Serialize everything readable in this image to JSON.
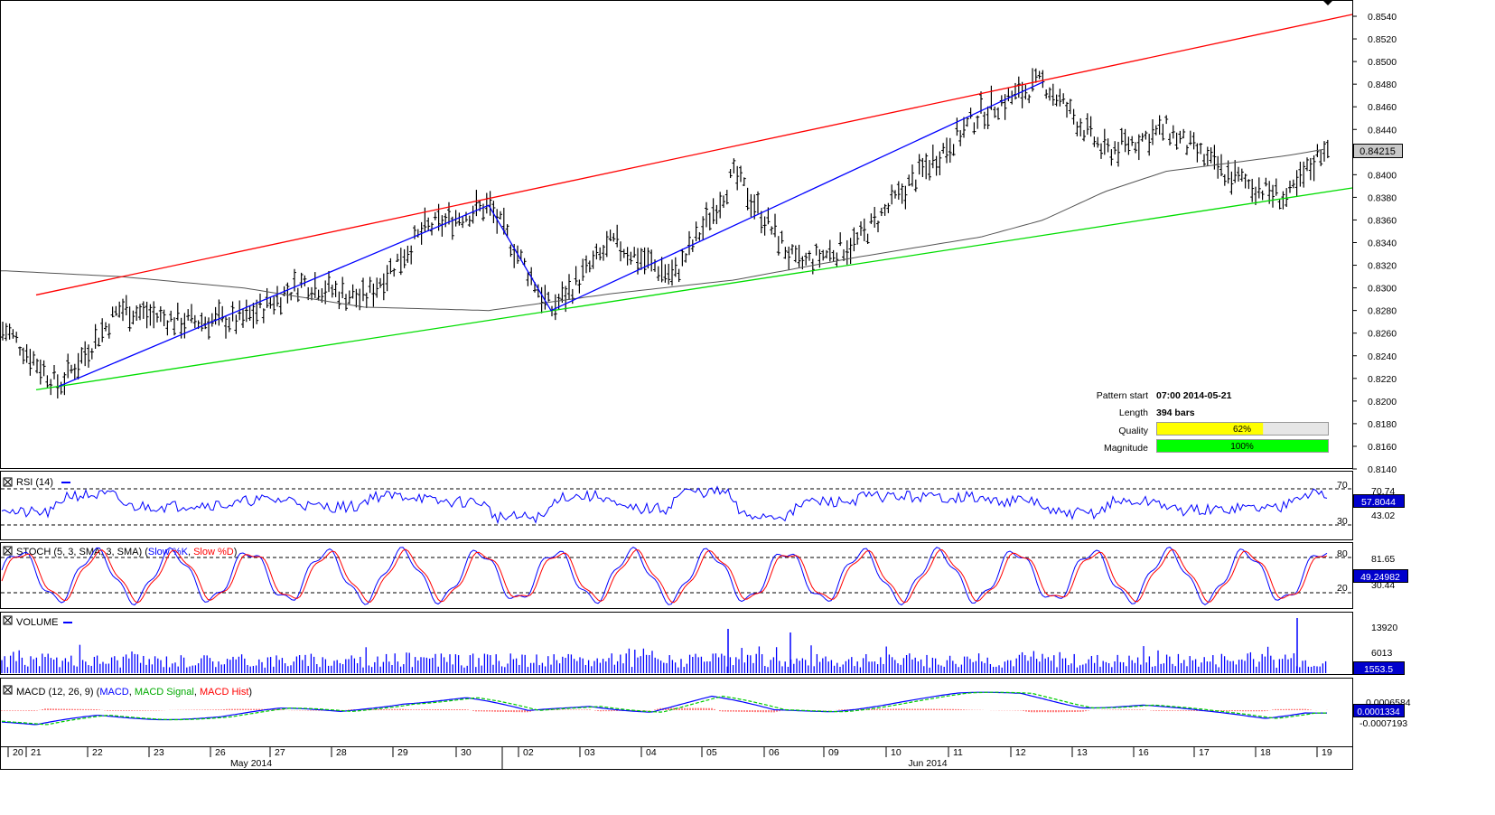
{
  "main_pane": {
    "price_ticks": [
      "0.8540",
      "0.8520",
      "0.8500",
      "0.8480",
      "0.8460",
      "0.8440",
      "0.8420",
      "0.8400",
      "0.8380",
      "0.8360",
      "0.8340",
      "0.8320",
      "0.8300",
      "0.8280",
      "0.8260",
      "0.8240",
      "0.8220",
      "0.8200",
      "0.8180",
      "0.8160",
      "0.8140"
    ],
    "last_price_label": "0.84215",
    "pattern_info": {
      "pattern_start_label": "Pattern start",
      "pattern_start_value": "07:00 2014-05-21",
      "length_label": "Length",
      "length_value": "394 bars",
      "quality_label": "Quality",
      "quality_value": "62%",
      "quality_fraction": 0.62,
      "magnitude_label": "Magnitude",
      "magnitude_value": "100%",
      "magnitude_fraction": 1.0
    }
  },
  "rsi_pane": {
    "title": "RSI (14)",
    "levels": [
      "70",
      "30"
    ],
    "tick_labels": [
      "70.74",
      "43.02"
    ],
    "current_value": "57.8044"
  },
  "stoch_pane": {
    "title_prefix": "STOCH (5, 3, SMA, 3, SMA)",
    "series_k": "Slow %K",
    "series_d": "Slow %D",
    "levels": [
      "80",
      "20"
    ],
    "tick_labels": [
      "81.65",
      "30.44"
    ],
    "current_value": "49.24982"
  },
  "volume_pane": {
    "title": "VOLUME",
    "tick_labels": [
      "13920",
      "6013"
    ],
    "current_value": "1553.5"
  },
  "macd_pane": {
    "title_prefix": "MACD (12, 26, 9)",
    "series_macd": "MACD",
    "series_signal": "MACD Signal",
    "series_hist": "MACD Hist",
    "tick_labels": [
      "0.0006584",
      "-0.0007193"
    ],
    "current_value": "0.0001334"
  },
  "time_axis": {
    "day_labels": [
      "20",
      "21",
      "22",
      "23",
      "26",
      "27",
      "28",
      "29",
      "30",
      "02",
      "03",
      "04",
      "05",
      "06",
      "09",
      "10",
      "11",
      "12",
      "13",
      "16",
      "17",
      "18",
      "19"
    ],
    "month_labels": [
      "May 2014",
      "Jun 2014"
    ]
  },
  "colors": {
    "resistance_line": "#ff0000",
    "support_line": "#00dd00",
    "zigzag": "#0000ff",
    "moving_average": "#555555",
    "rsi": "#0000ff",
    "stoch_k": "#0000ff",
    "stoch_d": "#ff0000",
    "volume": "#0000ff",
    "macd": "#0000ff",
    "macd_signal": "#00cc00",
    "macd_hist": "#ff0000",
    "quality_bar": "#ffff00",
    "magnitude_bar": "#00ff00"
  },
  "chart_data": {
    "type": "ohlc",
    "instrument_price_range": [
      0.814,
      0.854
    ],
    "price_pivots": [
      {
        "day": "20",
        "price": 0.8262
      },
      {
        "day": "21",
        "price": 0.8213
      },
      {
        "day": "22",
        "price": 0.8282
      },
      {
        "day": "23",
        "price": 0.827
      },
      {
        "day": "26",
        "price": 0.8272
      },
      {
        "day": "27",
        "price": 0.8305
      },
      {
        "day": "28",
        "price": 0.829
      },
      {
        "day": "29",
        "price": 0.8352
      },
      {
        "day": "30",
        "price": 0.8373
      },
      {
        "day": "02",
        "price": 0.828
      },
      {
        "day": "03",
        "price": 0.834
      },
      {
        "day": "04",
        "price": 0.831
      },
      {
        "day": "05",
        "price": 0.84
      },
      {
        "day": "06",
        "price": 0.832
      },
      {
        "day": "09",
        "price": 0.834
      },
      {
        "day": "10",
        "price": 0.84
      },
      {
        "day": "11",
        "price": 0.8455
      },
      {
        "day": "12",
        "price": 0.8482
      },
      {
        "day": "13",
        "price": 0.842
      },
      {
        "day": "16",
        "price": 0.844
      },
      {
        "day": "17",
        "price": 0.84
      },
      {
        "day": "18",
        "price": 0.8378
      },
      {
        "day": "19",
        "price": 0.843
      }
    ],
    "last_close": 0.84215,
    "pattern": {
      "type": "ascending channel",
      "start": "07:00 2014-05-21",
      "length_bars": 394,
      "quality_pct": 62,
      "magnitude_pct": 100,
      "resistance_line": {
        "from": {
          "day": "21",
          "price": 0.8298
        },
        "to": {
          "day": "19",
          "price": 0.8537
        }
      },
      "support_line": {
        "from": {
          "day": "21",
          "price": 0.8213
        },
        "to": {
          "day": "19",
          "price": 0.8385
        }
      },
      "zigzag": [
        {
          "day": "21",
          "price": 0.8213
        },
        {
          "day": "30",
          "price": 0.8373
        },
        {
          "day": "02",
          "price": 0.828
        },
        {
          "day": "12",
          "price": 0.8482
        }
      ]
    },
    "moving_average_points": [
      {
        "day": "20",
        "price": 0.8315
      },
      {
        "day": "22",
        "price": 0.831
      },
      {
        "day": "26",
        "price": 0.83
      },
      {
        "day": "28",
        "price": 0.8283
      },
      {
        "day": "30",
        "price": 0.828
      },
      {
        "day": "03",
        "price": 0.8295
      },
      {
        "day": "05",
        "price": 0.8307
      },
      {
        "day": "09",
        "price": 0.8327
      },
      {
        "day": "11",
        "price": 0.8345
      },
      {
        "day": "12",
        "price": 0.836
      },
      {
        "day": "13",
        "price": 0.8385
      },
      {
        "day": "16",
        "price": 0.8403
      },
      {
        "day": "18",
        "price": 0.8417
      },
      {
        "day": "19",
        "price": 0.8423
      }
    ],
    "indicators": {
      "rsi_levels": [
        30,
        70
      ],
      "stoch_levels": [
        20,
        80
      ],
      "rsi_last": 57.8044,
      "stoch_last": 49.24982,
      "volume_last": 1553.5,
      "macd_last": 0.0001334
    }
  }
}
